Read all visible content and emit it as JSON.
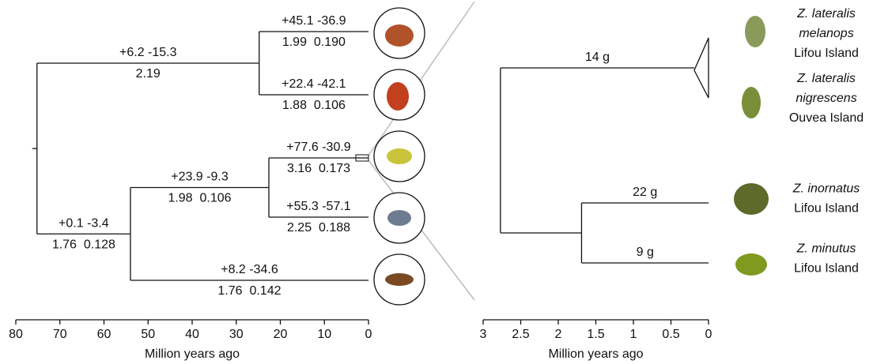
{
  "panels": [
    {
      "xlabel": "Million years ago",
      "xlim": [
        80,
        0
      ],
      "xticks": [
        80,
        70,
        60,
        50,
        40,
        30,
        20,
        10,
        0
      ],
      "tree": {
        "age": 75.2,
        "children": [
          {
            "age": 24.8,
            "labels": [
              "+6.2 -15.3",
              "2.19"
            ],
            "children": [
              {
                "age": 0,
                "labels": [
                  "+45.1 -36.9",
                  "1.99  0.190"
                ]
              },
              {
                "age": 0,
                "labels": [
                  "+22.4 -42.1",
                  "1.88  0.106"
                ]
              }
            ]
          },
          {
            "age": 54,
            "labels": [
              "+0.1 -3.4",
              "1.76  0.128"
            ],
            "children": [
              {
                "age": 22.6,
                "labels": [
                  "+23.9 -9.3",
                  "1.98  0.106"
                ],
                "children": [
                  {
                    "age": 0,
                    "labels": [
                      "+77.6 -30.9",
                      "3.16  0.173"
                    ]
                  },
                  {
                    "age": 0,
                    "labels": [
                      "+55.3 -57.1",
                      "2.25  0.188"
                    ]
                  }
                ]
              },
              {
                "age": 0,
                "labels": [
                  "+8.2 -34.6",
                  "1.76  0.142"
                ]
              }
            ]
          }
        ]
      }
    },
    {
      "xlabel": "Million years ago",
      "xlim": [
        3,
        0
      ],
      "xticks": [
        3,
        2.5,
        2,
        1.5,
        1,
        0.5,
        0
      ],
      "tree": {
        "age": 2.77,
        "children": [
          {
            "age": 0.19,
            "labels": [
              "14 g"
            ],
            "collapsed": true,
            "children": [
              {
                "age": 0,
                "name": [
                  "Z. lateralis",
                  "melanops"
                ],
                "island": "Lifou Island"
              },
              {
                "age": 0,
                "name": [
                  "Z. lateralis",
                  "nigrescens"
                ],
                "island": "Ouvea Island"
              }
            ]
          },
          {
            "age": 1.69,
            "children": [
              {
                "age": 0,
                "labels": [
                  "22 g"
                ],
                "name": [
                  "Z. inornatus"
                ],
                "island": "Lifou Island"
              },
              {
                "age": 0,
                "labels": [
                  "9 g"
                ],
                "name": [
                  "Z. minutus"
                ],
                "island": "Lifou Island"
              }
            ]
          }
        ]
      }
    }
  ]
}
